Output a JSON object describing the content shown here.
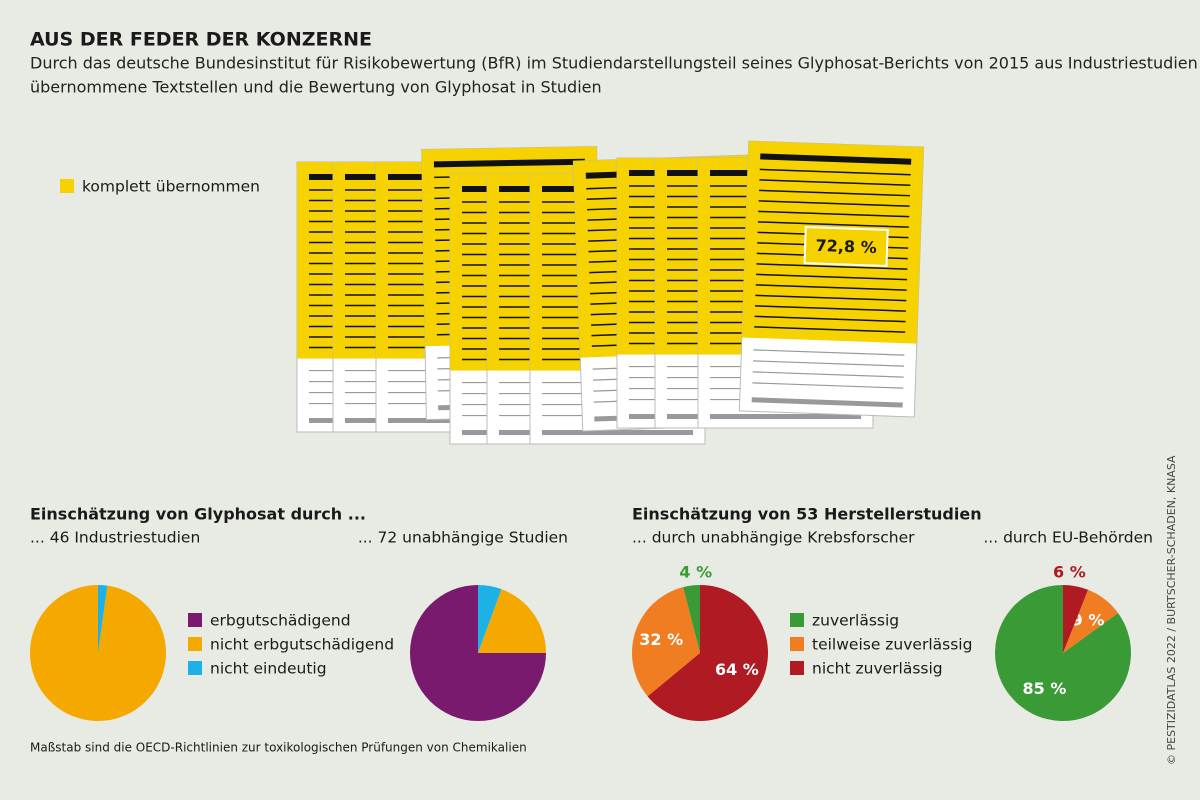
{
  "title": "AUS DER FEDER DER KONZERNE",
  "subtitle": [
    "Durch das deutsche Bundesinstitut für Risikobewertung (BfR) im Studiendarstellungsteil seines Glyphosat-Berichts von 2015 aus Industriestudien",
    "übernommene Textstellen und die Bewertung von Glyphosat in Studien"
  ],
  "footnote": "Maßstab sind die OECD-Richtlinien zur toxikologischen Prüfungen von Chemikalien",
  "credit": "© PESTIZIDATLAS 2022 / BURTSCHER-SCHADEN, KNASA",
  "chart_data": [
    {
      "type": "documents",
      "legend": "komplett übernommen",
      "color": "#f5d200",
      "value": 72.8,
      "value_label": "72,8 %"
    },
    {
      "type": "pie",
      "title": "Einschätzung von Glyphosat durch ...",
      "categories": [
        "erbgutschädigend",
        "nicht erbgutschädigend",
        "nicht eindeutig"
      ],
      "colors": [
        "#7a1a6e",
        "#f5a800",
        "#1eb1e6"
      ],
      "pies": [
        {
          "label": "... 46 Industriestudien",
          "values": [
            0,
            97.8,
            2.2
          ]
        },
        {
          "label": "... 72 unabhängige Studien",
          "values": [
            75,
            19.4,
            5.6
          ]
        }
      ]
    },
    {
      "type": "pie",
      "title": "Einschätzung von 53 Herstellerstudien",
      "categories": [
        "zuverlässig",
        "teilweise zuverlässig",
        "nicht zuverlässig"
      ],
      "colors": [
        "#3a9a35",
        "#f07d22",
        "#b01a22"
      ],
      "pies": [
        {
          "label": "... durch unabhängige Krebsforscher",
          "values": [
            4,
            32,
            64
          ],
          "value_labels": [
            "4 %",
            "32 %",
            "64 %"
          ]
        },
        {
          "label": "... durch EU-Behörden",
          "values": [
            85,
            9,
            6
          ],
          "value_labels": [
            "85 %",
            "9 %",
            "6 %"
          ]
        }
      ]
    }
  ]
}
